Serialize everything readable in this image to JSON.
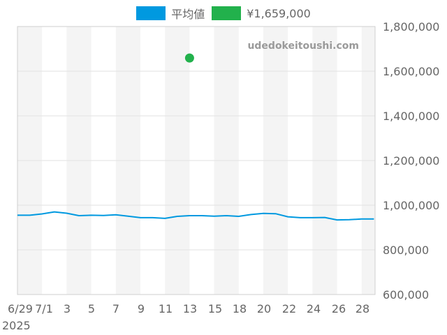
{
  "legend": {
    "items": [
      {
        "label": "平均値",
        "color": "#0099e0"
      },
      {
        "label": "¥1,659,000",
        "color": "#22b14c"
      }
    ]
  },
  "watermark": "udedokeitoushi.com",
  "chart_data": {
    "type": "line",
    "x_tick_labels": [
      "6/29",
      "7/1",
      "3",
      "5",
      "7",
      "9",
      "11",
      "13",
      "15",
      "18",
      "20",
      "22",
      "24",
      "26",
      "28"
    ],
    "x_year_label": "2025",
    "y_tick_labels": [
      "600,000",
      "800,000",
      "1,000,000",
      "1,200,000",
      "1,400,000",
      "1,600,000",
      "1,800,000"
    ],
    "ylim": [
      600000,
      1800000
    ],
    "series": [
      {
        "name": "平均値",
        "color": "#0099e0",
        "values": [
          955000,
          955000,
          961000,
          970000,
          964000,
          953000,
          955000,
          954000,
          957000,
          951000,
          944000,
          944000,
          941000,
          950000,
          953000,
          953000,
          951000,
          953000,
          950000,
          958000,
          963000,
          962000,
          948000,
          944000,
          944000,
          945000,
          934000,
          935000,
          938000,
          938000
        ]
      },
      {
        "name": "¥1,659,000",
        "color": "#22b14c",
        "type": "scatter",
        "points": [
          {
            "x_index": 14,
            "value": 1659000
          }
        ]
      }
    ]
  }
}
